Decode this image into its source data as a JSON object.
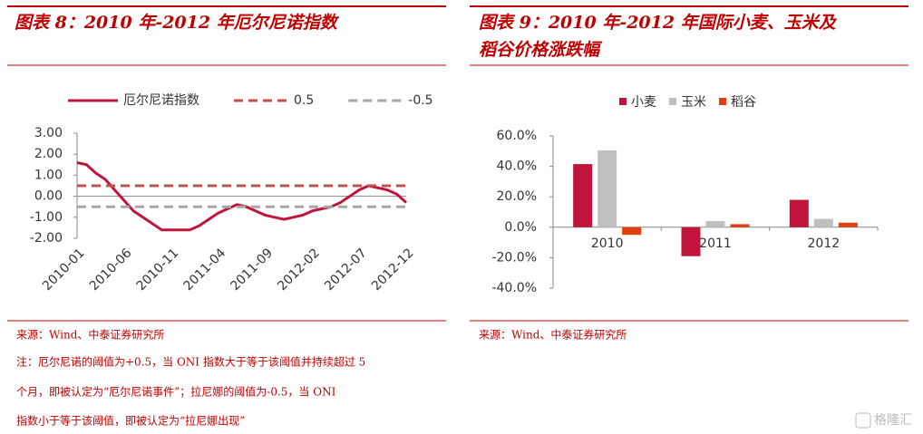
{
  "chart_data": [
    {
      "type": "line",
      "title": "图表 8：2010 年-2012 年厄尔尼诺指数",
      "categories": [
        "2010-01",
        null,
        null,
        null,
        null,
        "2010-06",
        null,
        null,
        null,
        null,
        "2010-11",
        null,
        null,
        null,
        null,
        "2011-04",
        null,
        null,
        null,
        null,
        "2011-09",
        null,
        null,
        null,
        null,
        "2012-02",
        null,
        null,
        null,
        null,
        "2012-07",
        null,
        null,
        null,
        null,
        "2012-12"
      ],
      "series": [
        {
          "name": "厄尔尼诺指数",
          "color": "#c0143c",
          "dash": false,
          "values": [
            1.6,
            1.5,
            1.1,
            0.8,
            0.3,
            -0.2,
            -0.7,
            -1.0,
            -1.3,
            -1.6,
            -1.6,
            -1.6,
            -1.6,
            -1.4,
            -1.1,
            -0.8,
            -0.6,
            -0.4,
            -0.5,
            -0.7,
            -0.9,
            -1.0,
            -1.1,
            -1.0,
            -0.9,
            -0.7,
            -0.6,
            -0.5,
            -0.3,
            0.0,
            0.3,
            0.5,
            0.4,
            0.3,
            0.1,
            -0.3
          ]
        },
        {
          "name": "0.5",
          "color": "#c0504d",
          "dash": true,
          "values": [
            0.5,
            0.5,
            0.5,
            0.5,
            0.5,
            0.5,
            0.5,
            0.5,
            0.5,
            0.5,
            0.5,
            0.5,
            0.5,
            0.5,
            0.5,
            0.5,
            0.5,
            0.5,
            0.5,
            0.5,
            0.5,
            0.5,
            0.5,
            0.5,
            0.5,
            0.5,
            0.5,
            0.5,
            0.5,
            0.5,
            0.5,
            0.5,
            0.5,
            0.5,
            0.5,
            0.5
          ]
        },
        {
          "name": "-0.5",
          "color": "#a6a6a6",
          "dash": true,
          "values": [
            -0.5,
            -0.5,
            -0.5,
            -0.5,
            -0.5,
            -0.5,
            -0.5,
            -0.5,
            -0.5,
            -0.5,
            -0.5,
            -0.5,
            -0.5,
            -0.5,
            -0.5,
            -0.5,
            -0.5,
            -0.5,
            -0.5,
            -0.5,
            -0.5,
            -0.5,
            -0.5,
            -0.5,
            -0.5,
            -0.5,
            -0.5,
            -0.5,
            -0.5,
            -0.5,
            -0.5,
            -0.5,
            -0.5,
            -0.5,
            -0.5,
            -0.5
          ]
        }
      ],
      "ylim": [
        -2,
        3
      ],
      "yticks": [
        {
          "value": -2,
          "label": "-2.00"
        },
        {
          "value": -1,
          "label": "-1.00"
        },
        {
          "value": 0,
          "label": "0.00"
        },
        {
          "value": 1,
          "label": "1.00"
        },
        {
          "value": 2,
          "label": "2.00"
        },
        {
          "value": 3,
          "label": "3.00"
        }
      ],
      "source": "来源：Wind、中泰证券研究所",
      "note": [
        "注：厄尔尼诺的阈值为+0.5，当 ONI 指数大于等于该阈值并持续超过 5",
        "个月，即被认定为“厄尔尼诺事件”；拉尼娜的阈值为-0.5，当 ONI",
        "指数小于等于该阈值，即被认定为“拉尼娜出现”"
      ]
    },
    {
      "type": "bar",
      "title": [
        "图表 9：2010 年-2012 年国际小麦、玉米及",
        "稻谷价格涨跌幅"
      ],
      "categories": [
        "2010",
        "2011",
        "2012"
      ],
      "series": [
        {
          "name": "小麦",
          "color": "#c0143c",
          "values": [
            41.5,
            -19,
            18
          ]
        },
        {
          "name": "玉米",
          "color": "#bfbfbf",
          "values": [
            50.5,
            4,
            5.5
          ]
        },
        {
          "name": "稻谷",
          "color": "#e0400b",
          "values": [
            -5,
            2,
            3
          ]
        }
      ],
      "ylim": [
        -40,
        60
      ],
      "yticks": [
        {
          "value": -40,
          "label": "-40.0%"
        },
        {
          "value": -20,
          "label": "-20.0%"
        },
        {
          "value": 0,
          "label": "0.0%"
        },
        {
          "value": 20,
          "label": "20.0%"
        },
        {
          "value": 40,
          "label": "40.0%"
        },
        {
          "value": 60,
          "label": "60.0%"
        }
      ],
      "source": "来源：Wind、中泰证券研究所"
    }
  ],
  "watermark": "格隆汇"
}
